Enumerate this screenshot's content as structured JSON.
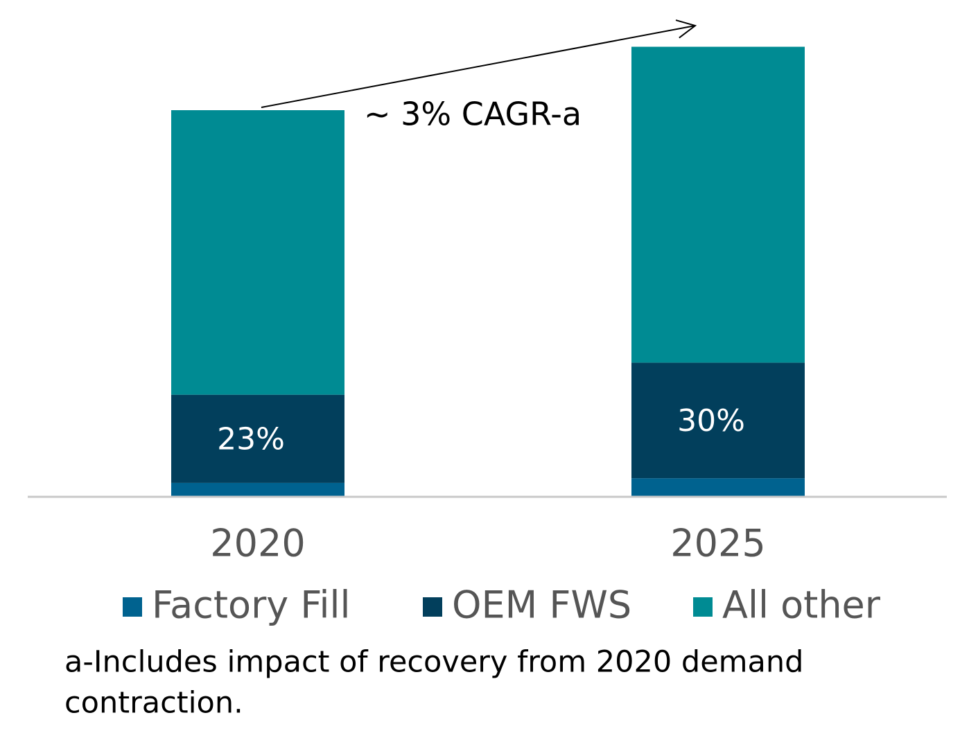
{
  "chart_data": {
    "type": "stacked_bar",
    "categories": [
      "2020",
      "2025"
    ],
    "series": [
      {
        "name": "Factory Fill",
        "color": "#00628f",
        "values": [
          3.6,
          4.8
        ]
      },
      {
        "name": "OEM FWS",
        "color": "#023f5c",
        "values": [
          22.8,
          29.9
        ],
        "value_labels": [
          "23%",
          "30%"
        ]
      },
      {
        "name": "All other",
        "color": "#008b93",
        "values": [
          73.6,
          81.7
        ]
      }
    ],
    "ylim": [
      0,
      120
    ],
    "annotation": "~ 3% CAGR-a",
    "footnote": [
      "a-Includes impact of recovery from 2020 demand",
      "contraction."
    ],
    "legend": "bottom"
  }
}
